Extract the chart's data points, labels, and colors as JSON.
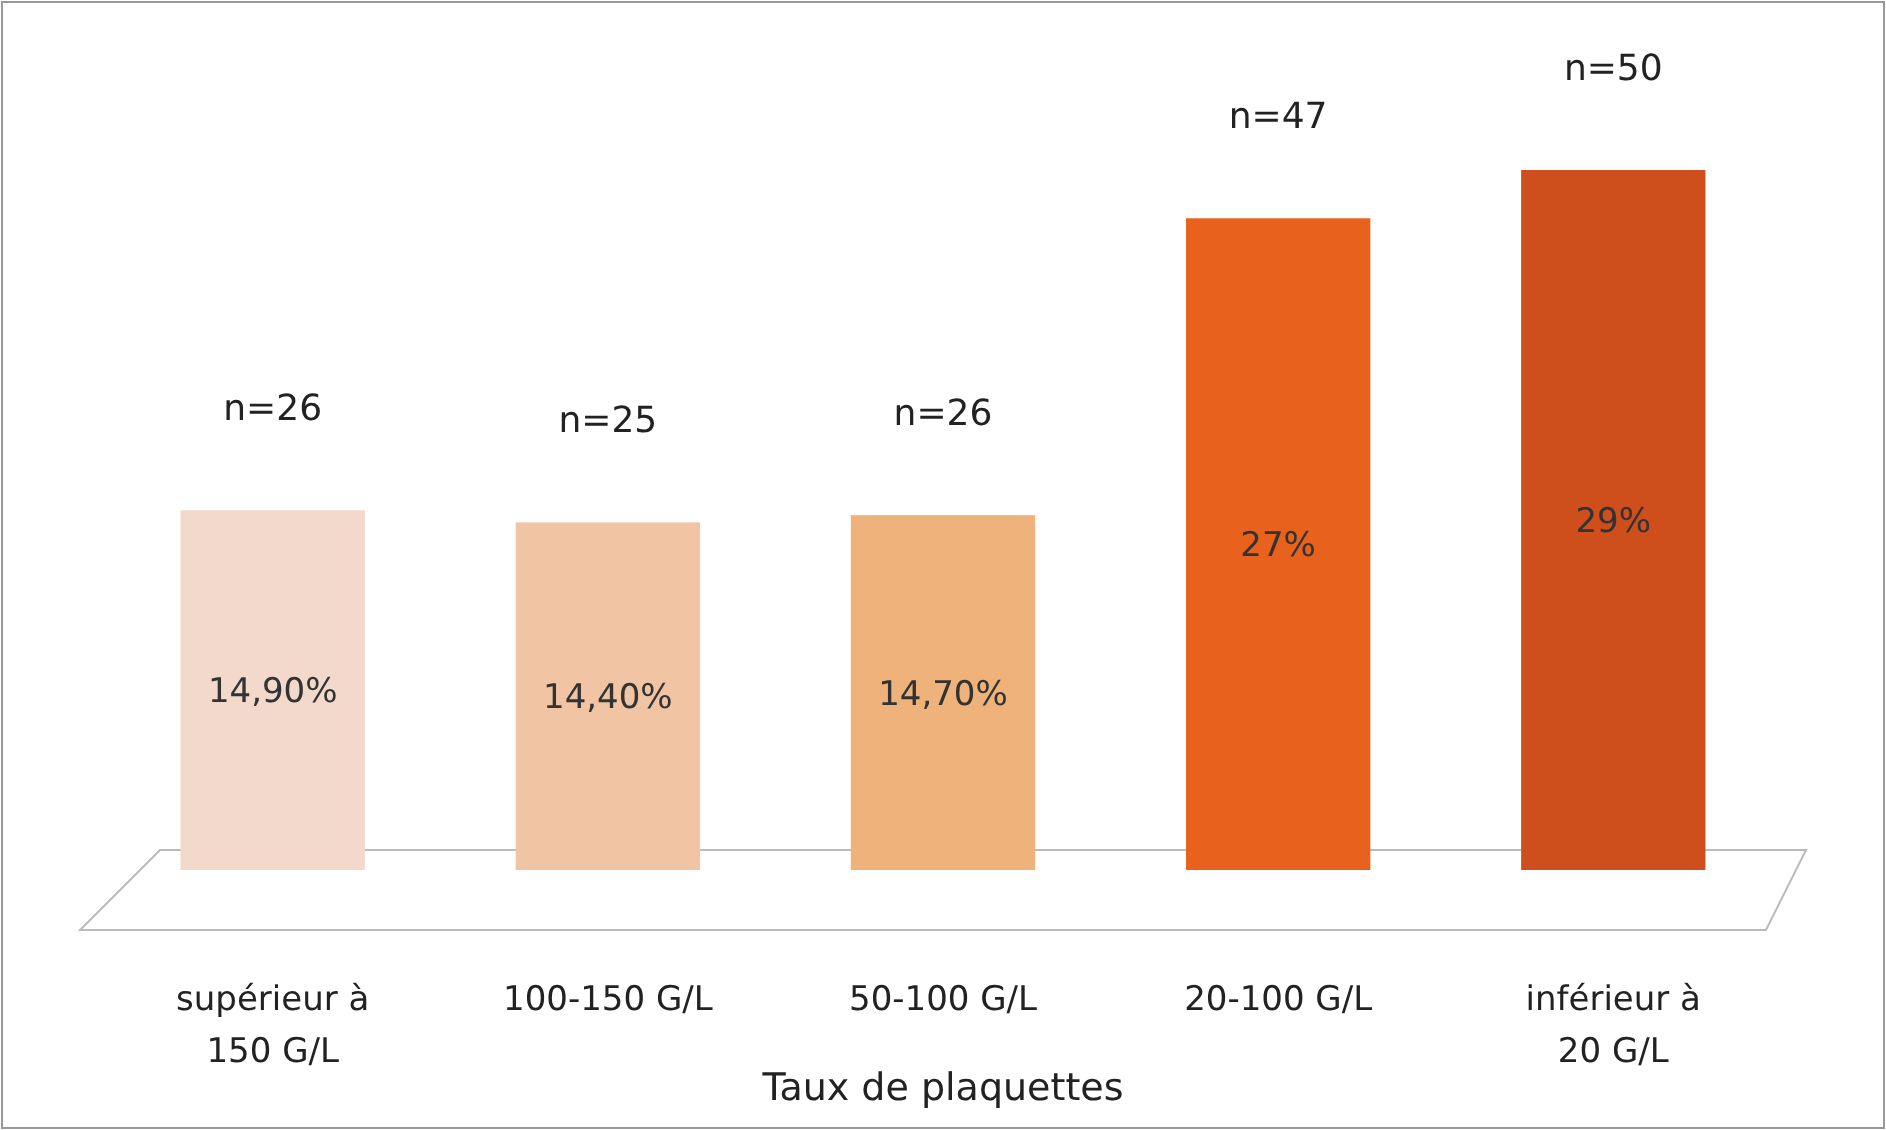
{
  "chart_data": {
    "type": "bar",
    "xlabel": "Taux de plaquettes",
    "categories": [
      "supérieur à 150 G/L",
      "100-150 G/L",
      "50-100 G/L",
      "20-100 G/L",
      "inférieur à 20 G/L"
    ],
    "values": [
      14.9,
      14.4,
      14.7,
      27,
      29
    ],
    "value_labels": [
      "14,90%",
      "14,40%",
      "14,70%",
      "27%",
      "29%"
    ],
    "colors": [
      "#f3d8cc",
      "#f1c4a4",
      "#efb27a",
      "#e8621e",
      "#cf4f1c"
    ],
    "annotations": [
      {
        "text": "n=26",
        "x": "supérieur à 150 G/L",
        "y": 14.9
      },
      {
        "text": "n=25",
        "x": "100-150 G/L",
        "y": 14.4
      },
      {
        "text": "n=26",
        "x": "50-100 G/L",
        "y": 14.7
      },
      {
        "text": "n=47",
        "x": "20-100 G/L",
        "y": 27
      },
      {
        "text": "n=50",
        "x": "inférieur à 20 G/L",
        "y": 29
      }
    ]
  }
}
